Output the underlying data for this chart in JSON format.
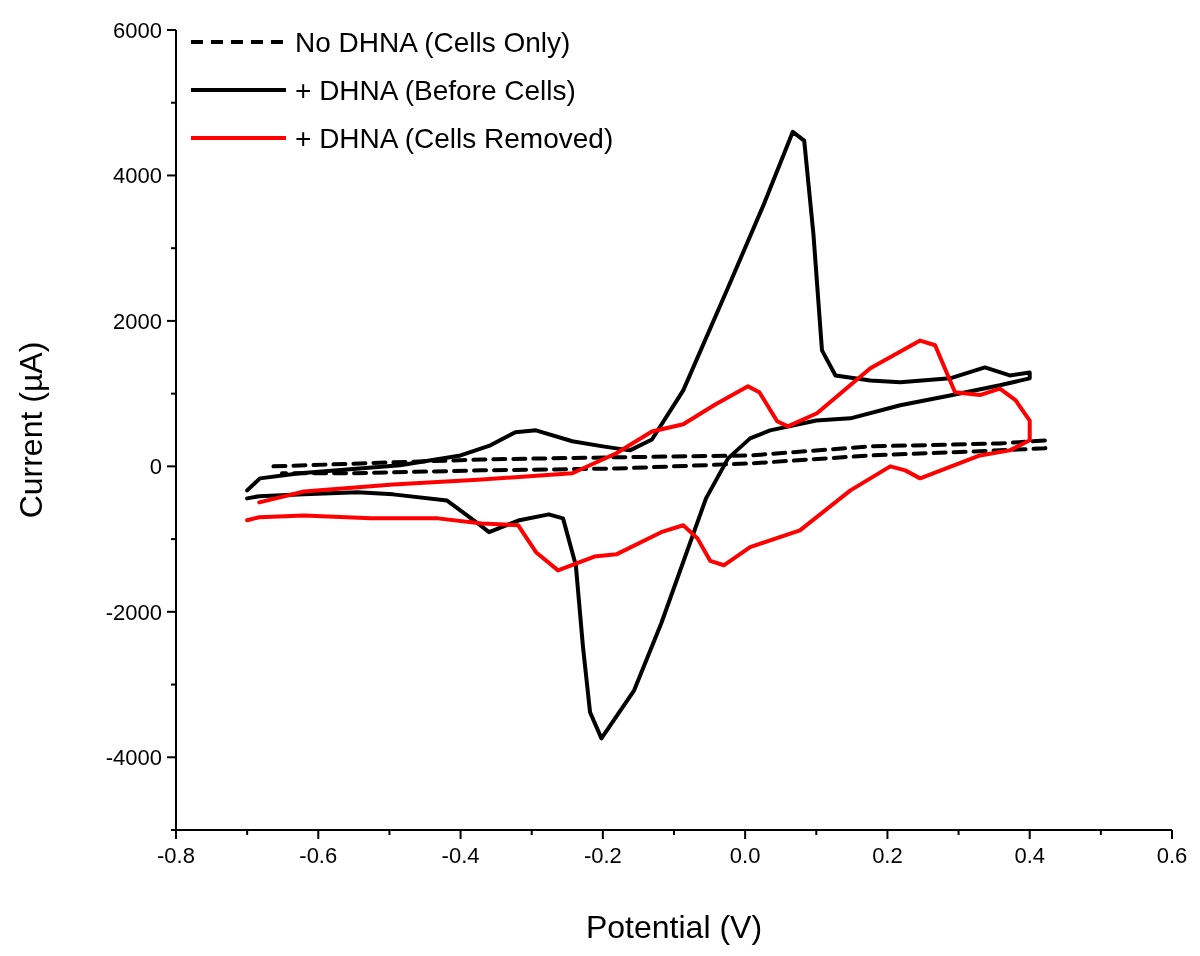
{
  "chart_data": {
    "type": "line",
    "xlabel": "Potential (V)",
    "ylabel": "Current (µA)",
    "xlim": [
      -0.8,
      0.6
    ],
    "ylim": [
      -5000,
      6000
    ],
    "xticks": [
      -0.8,
      {
        "value": -0.7,
        "label": null
      },
      -0.6,
      {
        "value": -0.5,
        "label": null
      },
      -0.4,
      {
        "value": -0.3,
        "label": null
      },
      -0.2,
      {
        "value": -0.1,
        "label": null
      },
      {
        "value": 0,
        "label": "0.0"
      },
      {
        "value": 0.1,
        "label": null
      },
      0.2,
      {
        "value": 0.3,
        "label": null
      },
      0.4,
      {
        "value": 0.5,
        "label": null
      },
      0.6
    ],
    "yticks": [
      {
        "value": -5000,
        "label": null
      },
      -4000,
      {
        "value": -3000,
        "label": null
      },
      -2000,
      {
        "value": -1000,
        "label": null
      },
      0,
      {
        "value": 1000,
        "label": null
      },
      2000,
      {
        "value": 3000,
        "label": null
      },
      4000,
      {
        "value": 5000,
        "label": null
      },
      6000
    ],
    "grid": false,
    "legend": "top left",
    "marker": "none",
    "series": [
      {
        "name": "No DHNA (Cells Only)",
        "color": "#000000",
        "line_style": "dashed",
        "x": [
          -0.663,
          -0.495,
          -0.37,
          -0.181,
          0.007,
          0.176,
          0.358,
          0.422,
          0.422,
          0.358,
          0.176,
          0.007,
          -0.181,
          -0.37,
          -0.557,
          -0.651
        ],
        "values": [
          0,
          55,
          95,
          125,
          150,
          275,
          315,
          355,
          250,
          220,
          150,
          40,
          -30,
          -55,
          -95,
          -95
        ]
      },
      {
        "name": "+ DHNA (Before Cells)",
        "color": "#000000",
        "line_style": "solid",
        "x": [
          -0.7,
          -0.682,
          -0.626,
          -0.485,
          -0.4,
          -0.358,
          -0.323,
          -0.294,
          -0.243,
          -0.2,
          -0.162,
          -0.131,
          -0.087,
          -0.024,
          0.027,
          0.067,
          0.083,
          0.096,
          0.108,
          0.127,
          0.176,
          0.218,
          0.288,
          0.337,
          0.372,
          0.4,
          0.4,
          0.358,
          0.288,
          0.218,
          0.148,
          0.1,
          0.035,
          0.007,
          -0.024,
          -0.055,
          -0.118,
          -0.156,
          -0.202,
          -0.218,
          -0.228,
          -0.238,
          -0.256,
          -0.276,
          -0.319,
          -0.36,
          -0.381,
          -0.419,
          -0.495,
          -0.545,
          -0.62,
          -0.683,
          -0.7
        ],
        "values": [
          -330,
          -165,
          -95,
          15,
          150,
          290,
          470,
          495,
          345,
          275,
          220,
          370,
          1045,
          2460,
          3620,
          4600,
          4480,
          3190,
          1595,
          1250,
          1180,
          1155,
          1210,
          1360,
          1250,
          1290,
          1210,
          1115,
          975,
          840,
          660,
          630,
          495,
          385,
          110,
          -440,
          -2160,
          -3080,
          -3740,
          -3380,
          -2475,
          -1360,
          -715,
          -660,
          -745,
          -905,
          -745,
          -470,
          -385,
          -355,
          -385,
          -410,
          -440
        ]
      },
      {
        "name": "+ DHNA (Cells Removed)",
        "color": "#ff0000",
        "line_style": "solid",
        "x": [
          -0.683,
          -0.62,
          -0.495,
          -0.37,
          -0.243,
          -0.181,
          -0.131,
          -0.087,
          -0.042,
          0.004,
          0.02,
          0.045,
          0.06,
          0.101,
          0.176,
          0.246,
          0.267,
          0.295,
          0.33,
          0.358,
          0.38,
          0.4,
          0.4,
          0.372,
          0.33,
          0.246,
          0.225,
          0.204,
          0.148,
          0.077,
          0.007,
          -0.03,
          -0.049,
          -0.067,
          -0.087,
          -0.118,
          -0.181,
          -0.212,
          -0.263,
          -0.294,
          -0.319,
          -0.37,
          -0.432,
          -0.526,
          -0.62,
          -0.683,
          -0.7
        ],
        "values": [
          -495,
          -345,
          -250,
          -180,
          -95,
          180,
          480,
          580,
          850,
          1100,
          1020,
          620,
          550,
          730,
          1350,
          1730,
          1665,
          1020,
          980,
          1070,
          910,
          630,
          360,
          220,
          150,
          -165,
          -55,
          0,
          -330,
          -880,
          -1110,
          -1360,
          -1300,
          -990,
          -810,
          -905,
          -1210,
          -1240,
          -1430,
          -1180,
          -810,
          -785,
          -715,
          -715,
          -675,
          -700,
          -740
        ]
      }
    ]
  }
}
